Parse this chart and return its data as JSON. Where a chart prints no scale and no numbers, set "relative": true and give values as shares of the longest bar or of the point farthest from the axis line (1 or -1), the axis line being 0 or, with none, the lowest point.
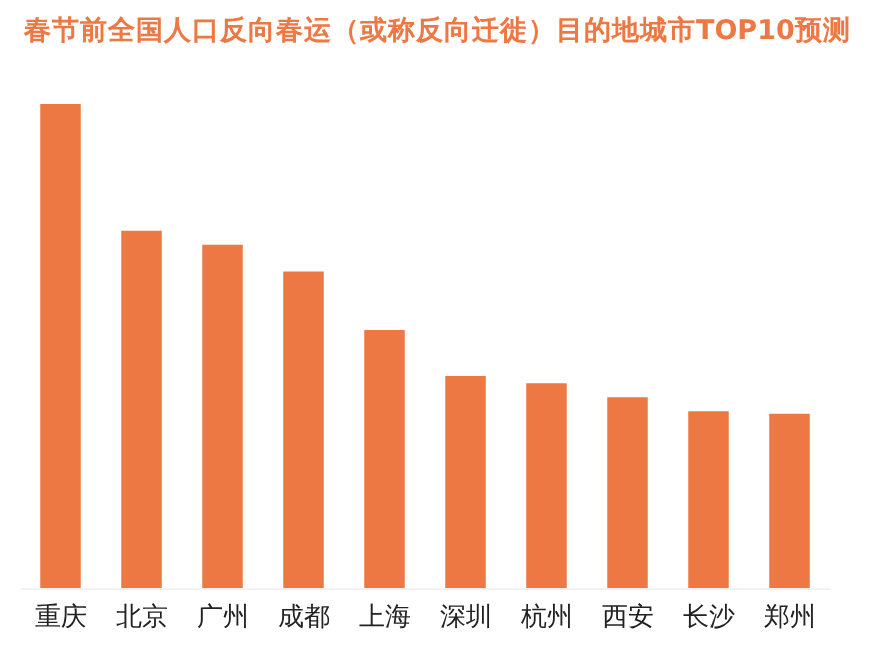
{
  "chart_data": {
    "type": "bar",
    "title": "春节前全国人口反向春运（或称反向迁徙）目的地城市TOP10预测",
    "relative": true,
    "color": "#ed7843",
    "categories": [
      "重庆",
      "北京",
      "广州",
      "成都",
      "上海",
      "深圳",
      "杭州",
      "西安",
      "长沙",
      "郑州"
    ],
    "values": [
      1,
      0.738,
      0.709,
      0.654,
      0.533,
      0.438,
      0.423,
      0.394,
      0.365,
      0.36
    ]
  }
}
